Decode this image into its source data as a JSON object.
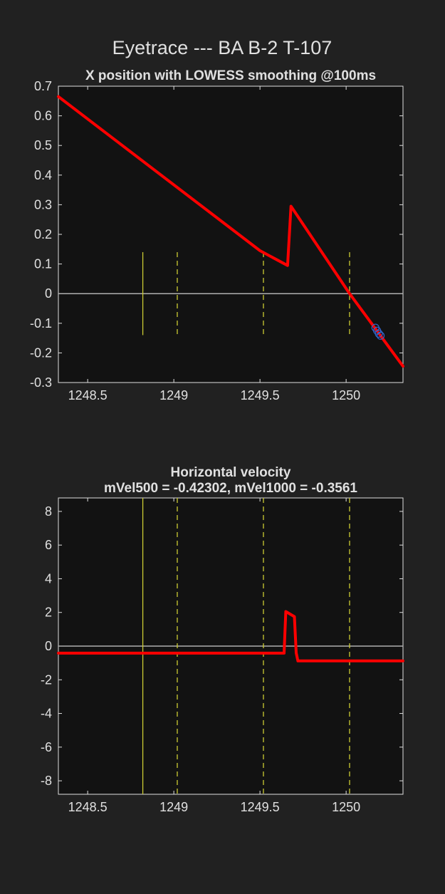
{
  "figure": {
    "title": "Eyetrace --- BA B-2 T-107"
  },
  "colors": {
    "background": "#212121",
    "axes_bg": "#121212",
    "text": "#e0e0e0",
    "trace": "#ff0000",
    "zero_line": "#b0b0b0",
    "event_line": "#cccc33",
    "marker": "#3366cc"
  },
  "chart_data": [
    {
      "type": "line",
      "title": "X position with LOWESS smoothing @100ms",
      "xlabel": "",
      "ylabel": "",
      "xlim": [
        1248.33,
        1250.33
      ],
      "ylim": [
        -0.3,
        0.7
      ],
      "xticks": [
        1248.5,
        1249,
        1249.5,
        1250
      ],
      "xtick_labels": [
        "1248.5",
        "1249",
        "1249.5",
        "1250"
      ],
      "yticks": [
        -0.3,
        -0.2,
        -0.1,
        0,
        0.1,
        0.2,
        0.3,
        0.4,
        0.5,
        0.6,
        0.7
      ],
      "ytick_labels": [
        "-0.3",
        "-0.2",
        "-0.1",
        "0",
        "0.1",
        "0.2",
        "0.3",
        "0.4",
        "0.5",
        "0.6",
        "0.7"
      ],
      "series": [
        {
          "name": "x-position",
          "x": [
            1248.33,
            1249.5,
            1249.66,
            1249.68,
            1250.02,
            1250.33
          ],
          "y": [
            0.665,
            0.145,
            0.095,
            0.295,
            0.0,
            -0.245
          ]
        }
      ],
      "event_lines": [
        {
          "x": 1248.82,
          "style": "solid",
          "y_range": [
            -0.14,
            0.14
          ]
        },
        {
          "x": 1249.02,
          "style": "dashed",
          "y_range": [
            -0.14,
            0.14
          ]
        },
        {
          "x": 1249.52,
          "style": "dashed",
          "y_range": [
            -0.14,
            0.14
          ]
        },
        {
          "x": 1250.02,
          "style": "dashed",
          "y_range": [
            -0.14,
            0.14
          ]
        }
      ],
      "markers": [
        {
          "x": 1250.17,
          "y": -0.115
        },
        {
          "x": 1250.18,
          "y": -0.125
        },
        {
          "x": 1250.19,
          "y": -0.135
        },
        {
          "x": 1250.2,
          "y": -0.142
        }
      ]
    },
    {
      "type": "line",
      "title": "Horizontal velocity",
      "subtitle": "mVel500 = -0.42302, mVel1000 = -0.3561",
      "xlabel": "",
      "ylabel": "",
      "xlim": [
        1248.33,
        1250.33
      ],
      "ylim": [
        -8.8,
        8.8
      ],
      "xticks": [
        1248.5,
        1249,
        1249.5,
        1250
      ],
      "xtick_labels": [
        "1248.5",
        "1249",
        "1249.5",
        "1250"
      ],
      "yticks": [
        -8,
        -6,
        -4,
        -2,
        0,
        2,
        4,
        6,
        8
      ],
      "ytick_labels": [
        "-8",
        "-6",
        "-4",
        "-2",
        "0",
        "2",
        "4",
        "6",
        "8"
      ],
      "series": [
        {
          "name": "velocity",
          "x": [
            1248.33,
            1249.64,
            1249.65,
            1249.7,
            1249.71,
            1249.72,
            1250.33
          ],
          "y": [
            -0.42,
            -0.42,
            2.05,
            1.75,
            -0.4,
            -0.88,
            -0.88
          ]
        }
      ],
      "event_lines": [
        {
          "x": 1248.82,
          "style": "solid",
          "y_range": [
            -8.8,
            8.8
          ]
        },
        {
          "x": 1249.02,
          "style": "dashed",
          "y_range": [
            -8.8,
            8.8
          ]
        },
        {
          "x": 1249.52,
          "style": "dashed",
          "y_range": [
            -8.8,
            8.8
          ]
        },
        {
          "x": 1250.02,
          "style": "dashed",
          "y_range": [
            -8.8,
            8.8
          ]
        }
      ],
      "markers": []
    }
  ]
}
